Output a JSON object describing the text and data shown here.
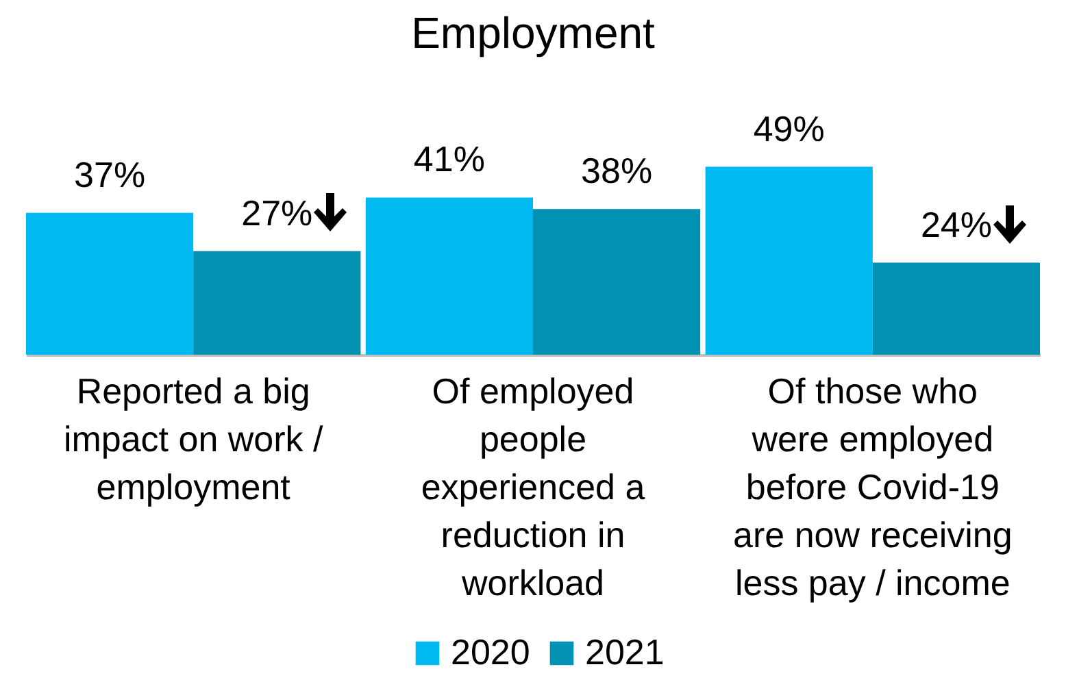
{
  "chart_data": {
    "type": "bar",
    "title": "Employment",
    "categories": [
      "Reported a big\nimpact on work /\nemployment",
      "Of employed\npeople\nexperienced a\nreduction in\nworkload",
      "Of those who\nwere employed\nbefore Covid-19\nare now receiving\nless pay / income"
    ],
    "series": [
      {
        "name": "2020",
        "color": "#00b9f1",
        "values": [
          37,
          41,
          49
        ],
        "value_labels": [
          "37%",
          "41%",
          "49%"
        ]
      },
      {
        "name": "2021",
        "color": "#0091b3",
        "values": [
          27,
          38,
          24
        ],
        "value_labels": [
          "27%",
          "38%",
          "24%"
        ]
      }
    ],
    "legend": "bottom"
  }
}
